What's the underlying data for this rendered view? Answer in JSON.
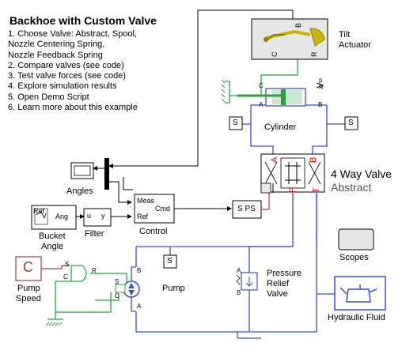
{
  "title": "Backhoe with Custom Valve",
  "steps": [
    "1. Choose Valve: Abstract, Spool,",
    "    Nozzle Centering Spring,",
    "    Nozzle Feedback Spring",
    "2. Compare valves (see code)",
    "3. Test valve forces (see code)",
    "4. Explore simulation results",
    "5. Open Demo Script",
    "6. Learn more about this example"
  ],
  "blocks": {
    "tilt_actuator": {
      "label_line1": "Tilt",
      "label_line2": "Actuator",
      "ports": [
        "C",
        "B",
        "R"
      ]
    },
    "cylinder": {
      "label": "Cylinder",
      "ports": [
        "C",
        "R",
        "A",
        "B",
        "p",
        "R"
      ]
    },
    "valve": {
      "label_line1": "4 Way Valve",
      "label_line2": "Abstract",
      "ports": [
        "A",
        "B",
        "P",
        "T"
      ]
    },
    "angles": {
      "label": "Angles"
    },
    "control": {
      "label": "Control",
      "ports": [
        "Meas",
        "Cmd",
        "Ref"
      ]
    },
    "filter": {
      "label": "Filter",
      "ports": [
        "u",
        "y"
      ]
    },
    "bucket_angle": {
      "label_line1": "Bucket",
      "label_line2": "Angle",
      "ports": [
        "Ref",
        "Ang"
      ]
    },
    "s_ps": {
      "label": "S PS"
    },
    "sensor_left": {
      "label": "S"
    },
    "sensor_right": {
      "label": "S"
    },
    "sensor_pump": {
      "label": "S"
    },
    "scopes": {
      "label": "Scopes"
    },
    "pump": {
      "label": "Pump",
      "ports": [
        "B",
        "A",
        "S",
        "C",
        "R",
        "C"
      ]
    },
    "pump_speed": {
      "label_line1": "Pump",
      "label_line2": "Speed",
      "symbol": "C"
    },
    "relief_valve": {
      "label_line1": "Pressure",
      "label_line2": "Relief",
      "label_line3": "Valve",
      "ports": [
        "A",
        "B"
      ]
    },
    "hydraulic_fluid": {
      "label": "Hydraulic Fluid"
    }
  },
  "colors": {
    "hydraulic": "#3b4fc9",
    "mechanical": "#2ea043",
    "physical_signal": "#9c4040",
    "valve_red": "#dd0000",
    "actuator_arm": "#c9b400",
    "block_fill": "#ffffff",
    "shade_fill": "#e6e6e6"
  }
}
